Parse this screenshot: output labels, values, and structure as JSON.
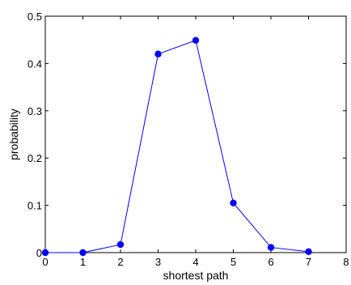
{
  "chart_data": {
    "type": "line",
    "xlabel": "shortest path",
    "ylabel": "probability",
    "xlim": [
      0,
      8
    ],
    "ylim": [
      0,
      0.5
    ],
    "xticks": [
      0,
      1,
      2,
      3,
      4,
      5,
      6,
      7,
      8
    ],
    "yticks": [
      0,
      0.1,
      0.2,
      0.3,
      0.4,
      0.5
    ],
    "xtick_labels": [
      "0",
      "1",
      "2",
      "3",
      "4",
      "5",
      "6",
      "7",
      "8"
    ],
    "ytick_labels": [
      "0",
      "0.1",
      "0.2",
      "0.3",
      "0.4",
      "0.5"
    ],
    "grid": false,
    "series": [
      {
        "x": [
          0,
          1,
          2,
          3,
          4,
          5,
          6,
          7
        ],
        "values": [
          0.0,
          0.0,
          0.017,
          0.42,
          0.449,
          0.105,
          0.011,
          0.002
        ],
        "color": "#0000ff",
        "marker": "circle"
      }
    ]
  }
}
